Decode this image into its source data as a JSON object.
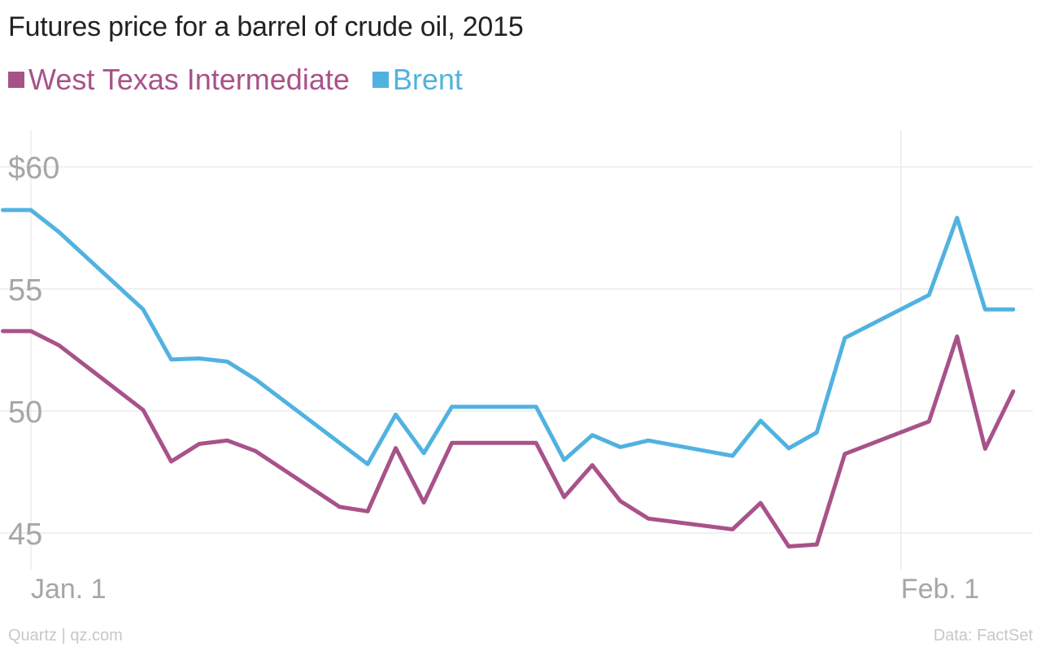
{
  "chart_data": {
    "type": "line",
    "title": "Futures price for a barrel of crude oil, 2015",
    "xlabel": "",
    "ylabel": "",
    "x_ticks": [
      {
        "label": "Jan. 1",
        "day": 0
      },
      {
        "label": "Feb. 1",
        "day": 31
      }
    ],
    "xlim": [
      -1.1,
      35.7
    ],
    "ylim": [
      43.5,
      61.5
    ],
    "y_ticks": [
      {
        "value": 45,
        "label": "45"
      },
      {
        "value": 50,
        "label": "50"
      },
      {
        "value": 55,
        "label": "55"
      },
      {
        "value": 60,
        "label": "$60"
      }
    ],
    "grid": true,
    "legend": "top-left",
    "series": [
      {
        "name": "West Texas Intermediate",
        "color": "#a8528a",
        "points": [
          [
            -1,
            53.27
          ],
          [
            0,
            53.27
          ],
          [
            1,
            52.69
          ],
          [
            4,
            50.04
          ],
          [
            5,
            47.93
          ],
          [
            6,
            48.65
          ],
          [
            7,
            48.79
          ],
          [
            8,
            48.36
          ],
          [
            11,
            46.07
          ],
          [
            12,
            45.89
          ],
          [
            13,
            48.48
          ],
          [
            14,
            46.25
          ],
          [
            15,
            48.69
          ],
          [
            18,
            48.69
          ],
          [
            19,
            46.47
          ],
          [
            20,
            47.78
          ],
          [
            21,
            46.31
          ],
          [
            22,
            45.59
          ],
          [
            25,
            45.15
          ],
          [
            26,
            46.23
          ],
          [
            27,
            44.45
          ],
          [
            28,
            44.53
          ],
          [
            29,
            48.24
          ],
          [
            32,
            49.57
          ],
          [
            33,
            53.05
          ],
          [
            34,
            48.45
          ],
          [
            35,
            50.8
          ]
        ]
      },
      {
        "name": "Brent",
        "color": "#51b2e0",
        "points": [
          [
            -1,
            58.23
          ],
          [
            0,
            58.23
          ],
          [
            1,
            57.33
          ],
          [
            4,
            54.16
          ],
          [
            5,
            52.11
          ],
          [
            6,
            52.15
          ],
          [
            7,
            52.02
          ],
          [
            8,
            51.3
          ],
          [
            12,
            47.82
          ],
          [
            13,
            49.85
          ],
          [
            14,
            48.27
          ],
          [
            15,
            50.17
          ],
          [
            18,
            50.17
          ],
          [
            19,
            47.99
          ],
          [
            20,
            49.01
          ],
          [
            21,
            48.52
          ],
          [
            22,
            48.79
          ],
          [
            25,
            48.16
          ],
          [
            26,
            49.6
          ],
          [
            27,
            48.47
          ],
          [
            28,
            49.12
          ],
          [
            29,
            52.99
          ],
          [
            32,
            54.75
          ],
          [
            33,
            57.91
          ],
          [
            34,
            54.16
          ],
          [
            35,
            54.16
          ]
        ]
      }
    ]
  },
  "footer": {
    "source_left": "Quartz | qz.com",
    "source_right": "Data: FactSet"
  }
}
